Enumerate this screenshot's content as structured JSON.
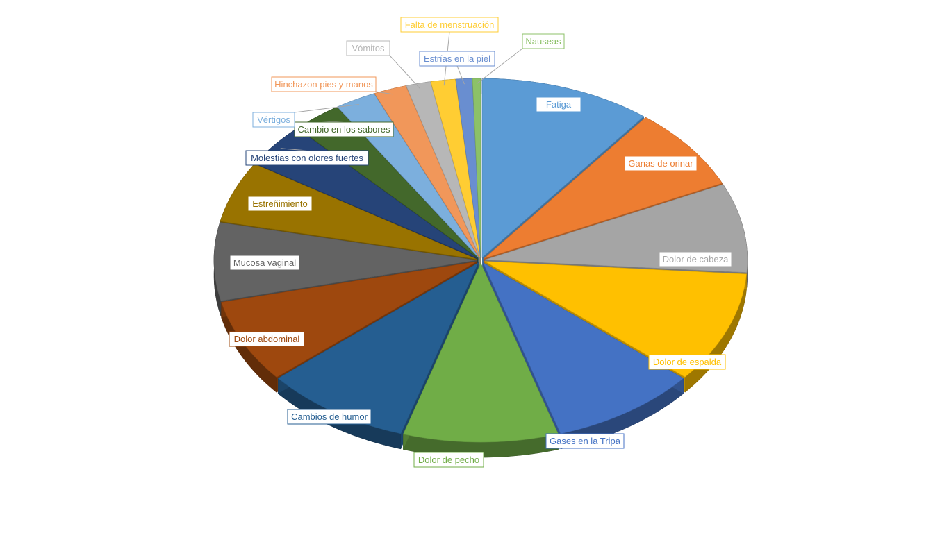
{
  "chart_data": {
    "type": "pie",
    "style": "3d-exploded",
    "title": "",
    "start_angle_deg": 0,
    "direction": "clockwise",
    "slices": [
      {
        "label": "Fatiga",
        "value": 10.5,
        "color": "#5B9BD5"
      },
      {
        "label": "Ganas de orinar",
        "value": 7.5,
        "color": "#ED7D31"
      },
      {
        "label": "Dolor de cabeza",
        "value": 8.0,
        "color": "#A5A5A5"
      },
      {
        "label": "Dolor de espalda",
        "value": 10.0,
        "color": "#FFC000"
      },
      {
        "label": "Gases en la Tripa",
        "value": 9.0,
        "color": "#4472C4"
      },
      {
        "label": "Dolor de pecho",
        "value": 9.5,
        "color": "#70AD47"
      },
      {
        "label": "Cambios de humor",
        "value": 9.0,
        "color": "#255E91"
      },
      {
        "label": "Dolor abdominal",
        "value": 7.5,
        "color": "#9E480E"
      },
      {
        "label": "Mucosa vaginal",
        "value": 7.0,
        "color": "#636363"
      },
      {
        "label": "Estreñimiento",
        "value": 5.5,
        "color": "#997300"
      },
      {
        "label": "Molestias con olores fuertes",
        "value": 4.0,
        "color": "#264478"
      },
      {
        "label": "Cambio en los sabores",
        "value": 3.0,
        "color": "#43682B"
      },
      {
        "label": "Vértigos",
        "value": 2.5,
        "color": "#7CAFDD"
      },
      {
        "label": "Hinchazon pies y manos",
        "value": 2.0,
        "color": "#F1975A"
      },
      {
        "label": "Vómitos",
        "value": 1.5,
        "color": "#B7B7B7"
      },
      {
        "label": "Falta de menstruación",
        "value": 1.5,
        "color": "#FFCD33"
      },
      {
        "label": "Estrías en la piel",
        "value": 1.0,
        "color": "#698ED0"
      },
      {
        "label": "Nauseas",
        "value": 0.5,
        "color": "#8CC168"
      }
    ],
    "legend": "none",
    "data_labels": "category-name-callouts"
  }
}
